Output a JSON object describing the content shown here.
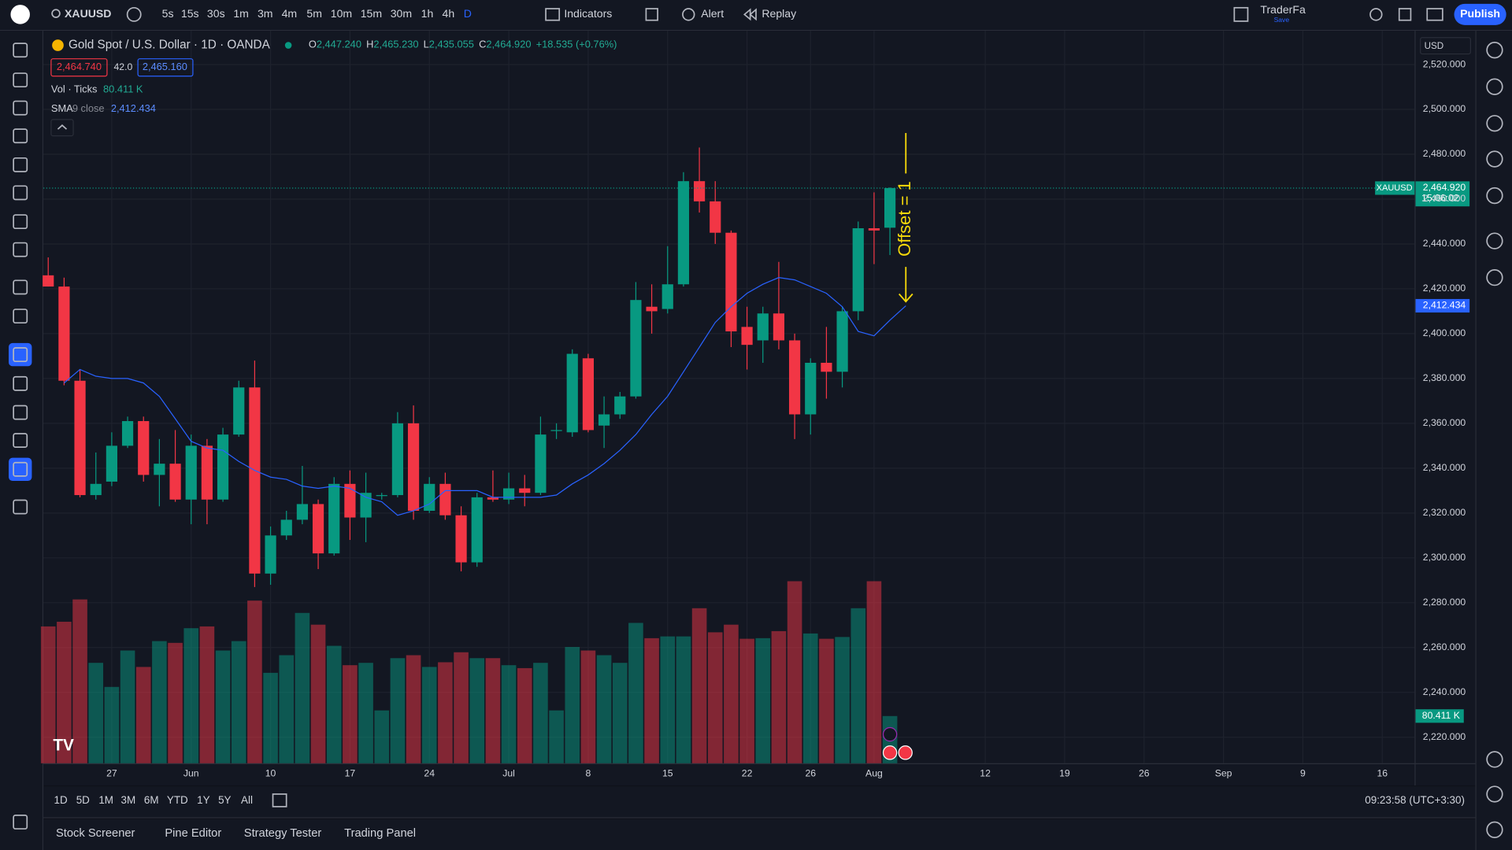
{
  "toolbar": {
    "symbol": "XAUUSD",
    "intervals": [
      "5s",
      "15s",
      "30s",
      "1m",
      "3m",
      "4m",
      "5m",
      "10m",
      "15m",
      "30m",
      "1h",
      "4h",
      "D"
    ],
    "indicators": "Indicators",
    "alert": "Alert",
    "replay": "Replay",
    "layout_name": "TraderFa",
    "layout_state": "Save",
    "publish": "Publish"
  },
  "legend": {
    "title": "Gold Spot / U.S. Dollar · 1D · OANDA",
    "ohlc": [
      {
        "key": "O",
        "value": "2,447.240"
      },
      {
        "key": "H",
        "value": "2,465.230"
      },
      {
        "key": "L",
        "value": "2,435.055"
      },
      {
        "key": "C",
        "value": "2,464.920"
      }
    ],
    "change": "+18.535 (+0.76%)",
    "sell": "2,464.740",
    "spread": "42.0",
    "buy": "2,465.160",
    "volume_name": "Vol · Ticks",
    "volume_value": "80.411 K",
    "sma_name": "SMA",
    "sma_params": "9 close",
    "sma_value": "2,412.434"
  },
  "price_scale": {
    "currency": "USD",
    "symbol_tag": "XAUUSD",
    "countdown": "15:06:02"
  },
  "chart_data": {
    "type": "candlestick",
    "annotation": "Offset = 1",
    "open": [
      2426,
      2421,
      2379,
      2328,
      2334,
      2350,
      2361,
      2337,
      2342,
      2326,
      2350,
      2326,
      2355,
      2376,
      2293,
      2310,
      2317,
      2324,
      2302,
      2333,
      2318,
      2328,
      2328,
      2360,
      2321,
      2333,
      2319,
      2298,
      2327,
      2326,
      2331,
      2329,
      2357,
      2356,
      2389,
      2359,
      2364,
      2372,
      2412,
      2411,
      2422,
      2468,
      2459,
      2445,
      2403,
      2397,
      2409,
      2397,
      2364,
      2387,
      2383,
      2410,
      2447,
      2447.24
    ],
    "high": [
      2434,
      2425,
      2384,
      2347,
      2356,
      2363,
      2363,
      2353,
      2357,
      2355,
      2353,
      2358,
      2379,
      2388,
      2314,
      2321,
      2341,
      2326,
      2336,
      2339,
      2338,
      2329,
      2365,
      2368,
      2336,
      2338,
      2323,
      2329,
      2339,
      2338,
      2337,
      2363,
      2360,
      2393,
      2391,
      2372,
      2374,
      2423,
      2422,
      2439,
      2472,
      2483,
      2468,
      2446,
      2412,
      2412,
      2432,
      2400,
      2389,
      2403,
      2412,
      2450,
      2463,
      2465.23
    ],
    "low": [
      2421,
      2377,
      2327,
      2326,
      2332,
      2349,
      2334,
      2323,
      2325,
      2315,
      2315,
      2325,
      2354,
      2287,
      2288,
      2308,
      2315,
      2295,
      2301,
      2308,
      2307,
      2326,
      2327,
      2317,
      2320,
      2317,
      2294,
      2296,
      2325,
      2324,
      2323,
      2328,
      2353,
      2354,
      2356,
      2349,
      2362,
      2371,
      2400,
      2409,
      2421,
      2454,
      2440,
      2394,
      2384,
      2387,
      2393,
      2353,
      2355,
      2371,
      2376,
      2406,
      2431,
      2435.055
    ],
    "close": [
      2421,
      2379,
      2328,
      2333,
      2350,
      2361,
      2337,
      2342,
      2326,
      2350,
      2326,
      2355,
      2376,
      2293,
      2310,
      2317,
      2324,
      2302,
      2333,
      2318,
      2329,
      2328,
      2360,
      2321,
      2333,
      2319,
      2298,
      2327,
      2326,
      2331,
      2329,
      2355,
      2357,
      2391,
      2357,
      2364,
      2372,
      2415,
      2410,
      2422,
      2468,
      2459,
      2445,
      2401,
      2395,
      2409,
      2397,
      2364,
      2387,
      2383,
      2410,
      2447,
      2446,
      2464.92
    ],
    "volume": [
      233,
      241,
      279,
      171,
      130,
      192,
      164,
      208,
      205,
      230,
      233,
      192,
      208,
      277,
      154,
      184,
      256,
      236,
      200,
      167,
      171,
      90,
      179,
      184,
      164,
      172,
      189,
      179,
      179,
      167,
      162,
      171,
      90,
      198,
      192,
      184,
      171,
      239,
      213,
      216,
      216,
      264,
      223,
      236,
      212,
      213,
      225,
      310,
      221,
      212,
      215,
      264,
      310,
      80.411
    ],
    "volume_lim": [
      0,
      320
    ],
    "sma": {
      "offset": 1,
      "color": "#2962ff",
      "values": [
        2378,
        2384,
        2381,
        2380,
        2380,
        2378,
        2372,
        2362,
        2352,
        2349,
        2348,
        2343,
        2339,
        2336,
        2335,
        2332,
        2331,
        2332,
        2331,
        2327,
        2325,
        2319,
        2321,
        2324,
        2330,
        2330,
        2330,
        2327,
        2327,
        2327,
        2327,
        2328,
        2333,
        2337,
        2342,
        2348,
        2355,
        2364,
        2372,
        2383,
        2394,
        2405,
        2412,
        2418,
        2422,
        2425,
        2424,
        2421,
        2418,
        2412,
        2401,
        2399,
        2406,
        2412.434
      ]
    },
    "up_color": "#089981",
    "down_color": "#f23645",
    "grid": true,
    "ylim": [
      2208.4,
      2531.6
    ],
    "yticks": [
      {
        "value": 2220,
        "label": "2,220.000"
      },
      {
        "value": 2240,
        "label": "2,240.000"
      },
      {
        "value": 2260,
        "label": "2,260.000"
      },
      {
        "value": 2280,
        "label": "2,280.000"
      },
      {
        "value": 2300,
        "label": "2,300.000"
      },
      {
        "value": 2320,
        "label": "2,320.000"
      },
      {
        "value": 2340,
        "label": "2,340.000"
      },
      {
        "value": 2360,
        "label": "2,360.000"
      },
      {
        "value": 2380,
        "label": "2,380.000"
      },
      {
        "value": 2400,
        "label": "2,400.000"
      },
      {
        "value": 2420,
        "label": "2,420.000"
      },
      {
        "value": 2440,
        "label": "2,440.000"
      },
      {
        "value": 2460,
        "label": "2,460.000"
      },
      {
        "value": 2480,
        "label": "2,480.000"
      },
      {
        "value": 2500,
        "label": "2,500.000"
      },
      {
        "value": 2520,
        "label": "2,520.000"
      }
    ],
    "xticks": [
      {
        "value": 4,
        "label": "27"
      },
      {
        "value": 9,
        "label": "Jun"
      },
      {
        "value": 14,
        "label": "10"
      },
      {
        "value": 19,
        "label": "17"
      },
      {
        "value": 24,
        "label": "24"
      },
      {
        "value": 29,
        "label": "Jul"
      },
      {
        "value": 34,
        "label": "8"
      },
      {
        "value": 39,
        "label": "15"
      },
      {
        "value": 44,
        "label": "22"
      },
      {
        "value": 48,
        "label": "26"
      },
      {
        "value": 52,
        "label": "Aug"
      },
      {
        "value": 59,
        "label": "12"
      },
      {
        "value": 64,
        "label": "19"
      },
      {
        "value": 69,
        "label": "26"
      },
      {
        "value": 74,
        "label": "Sep"
      },
      {
        "value": 79,
        "label": "9"
      },
      {
        "value": 84,
        "label": "16"
      }
    ]
  },
  "bottom": {
    "ranges": [
      "1D",
      "5D",
      "1M",
      "3M",
      "6M",
      "YTD",
      "1Y",
      "5Y",
      "All"
    ],
    "clock": "09:23:58 (UTC+3:30)",
    "tabs": [
      "Stock Screener",
      "Pine Editor",
      "Strategy Tester",
      "Trading Panel"
    ]
  }
}
